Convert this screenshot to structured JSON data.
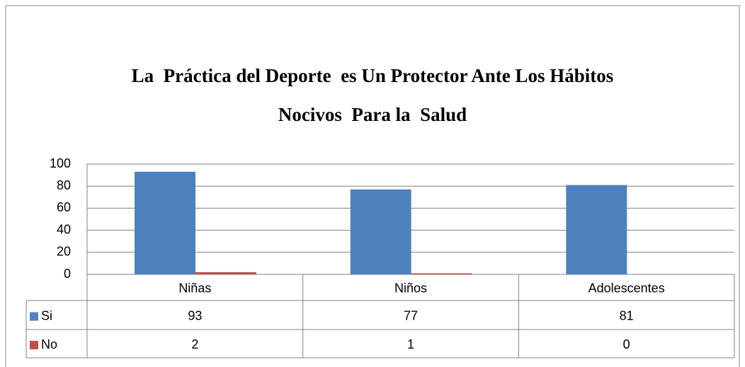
{
  "chart_data": {
    "type": "bar",
    "title": [
      "La  Práctica del Deporte  es Un Protector Ante Los Hábitos",
      "Nocivos  Para la  Salud"
    ],
    "categories": [
      "Niñas",
      "Niños",
      "Adolescentes"
    ],
    "series": [
      {
        "name": "Si",
        "color": "#4f81bd",
        "values": [
          93,
          77,
          81
        ]
      },
      {
        "name": "No",
        "color": "#c0504d",
        "values": [
          2,
          1,
          0
        ]
      }
    ],
    "ylim": [
      0,
      100
    ],
    "yticks": [
      0,
      20,
      40,
      60,
      80,
      100
    ],
    "grid": true,
    "data_table": true
  }
}
